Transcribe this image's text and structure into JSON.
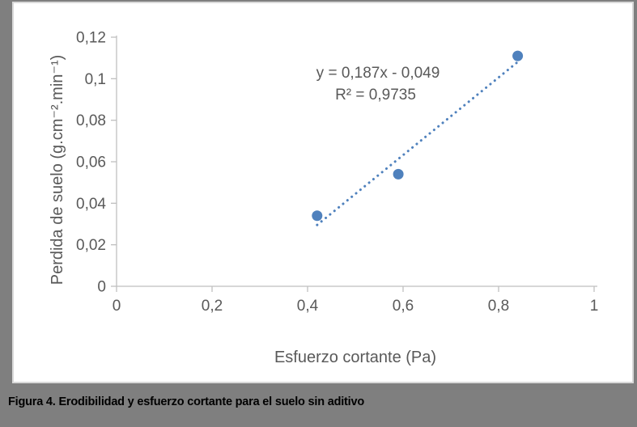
{
  "figure_caption": {
    "text": "Figura 4. Erodibilidad y esfuerzo cortante para el suelo sin aditivo"
  },
  "chart_data": {
    "type": "scatter",
    "title": "",
    "xlabel": "Esfuerzo cortante (Pa)",
    "ylabel": "Perdida de suelo (g.cm⁻².min⁻¹)",
    "xlim": [
      0,
      1
    ],
    "ylim": [
      0,
      0.12
    ],
    "x_ticks": [
      0,
      0.2,
      0.4,
      0.6,
      0.8,
      1
    ],
    "x_tick_labels": [
      "0",
      "0,2",
      "0,4",
      "0,6",
      "0,8",
      "1"
    ],
    "y_ticks": [
      0,
      0.02,
      0.04,
      0.06,
      0.08,
      0.1,
      0.12
    ],
    "y_tick_labels": [
      "0",
      "0,02",
      "0,04",
      "0,06",
      "0,08",
      "0,1",
      "0,12"
    ],
    "grid": false,
    "legend": false,
    "points": [
      {
        "x": 0.42,
        "y": 0.034
      },
      {
        "x": 0.59,
        "y": 0.054
      },
      {
        "x": 0.84,
        "y": 0.111
      }
    ],
    "trendline": {
      "equation_label": "y = 0,187x - 0,049",
      "r2_label": "R² = 0,9735",
      "slope": 0.187,
      "intercept": -0.049,
      "x_start": 0.42,
      "x_end": 0.84,
      "style": "dotted"
    },
    "colors": {
      "marker": "#4f81bd",
      "trendline": "#4f81bd",
      "axis": "#bfbfbf",
      "text": "#595959"
    }
  },
  "frame": {
    "page_background": "#7f7f7f",
    "chart_background": "#ffffff",
    "chart_border": "#d9d9d9"
  }
}
